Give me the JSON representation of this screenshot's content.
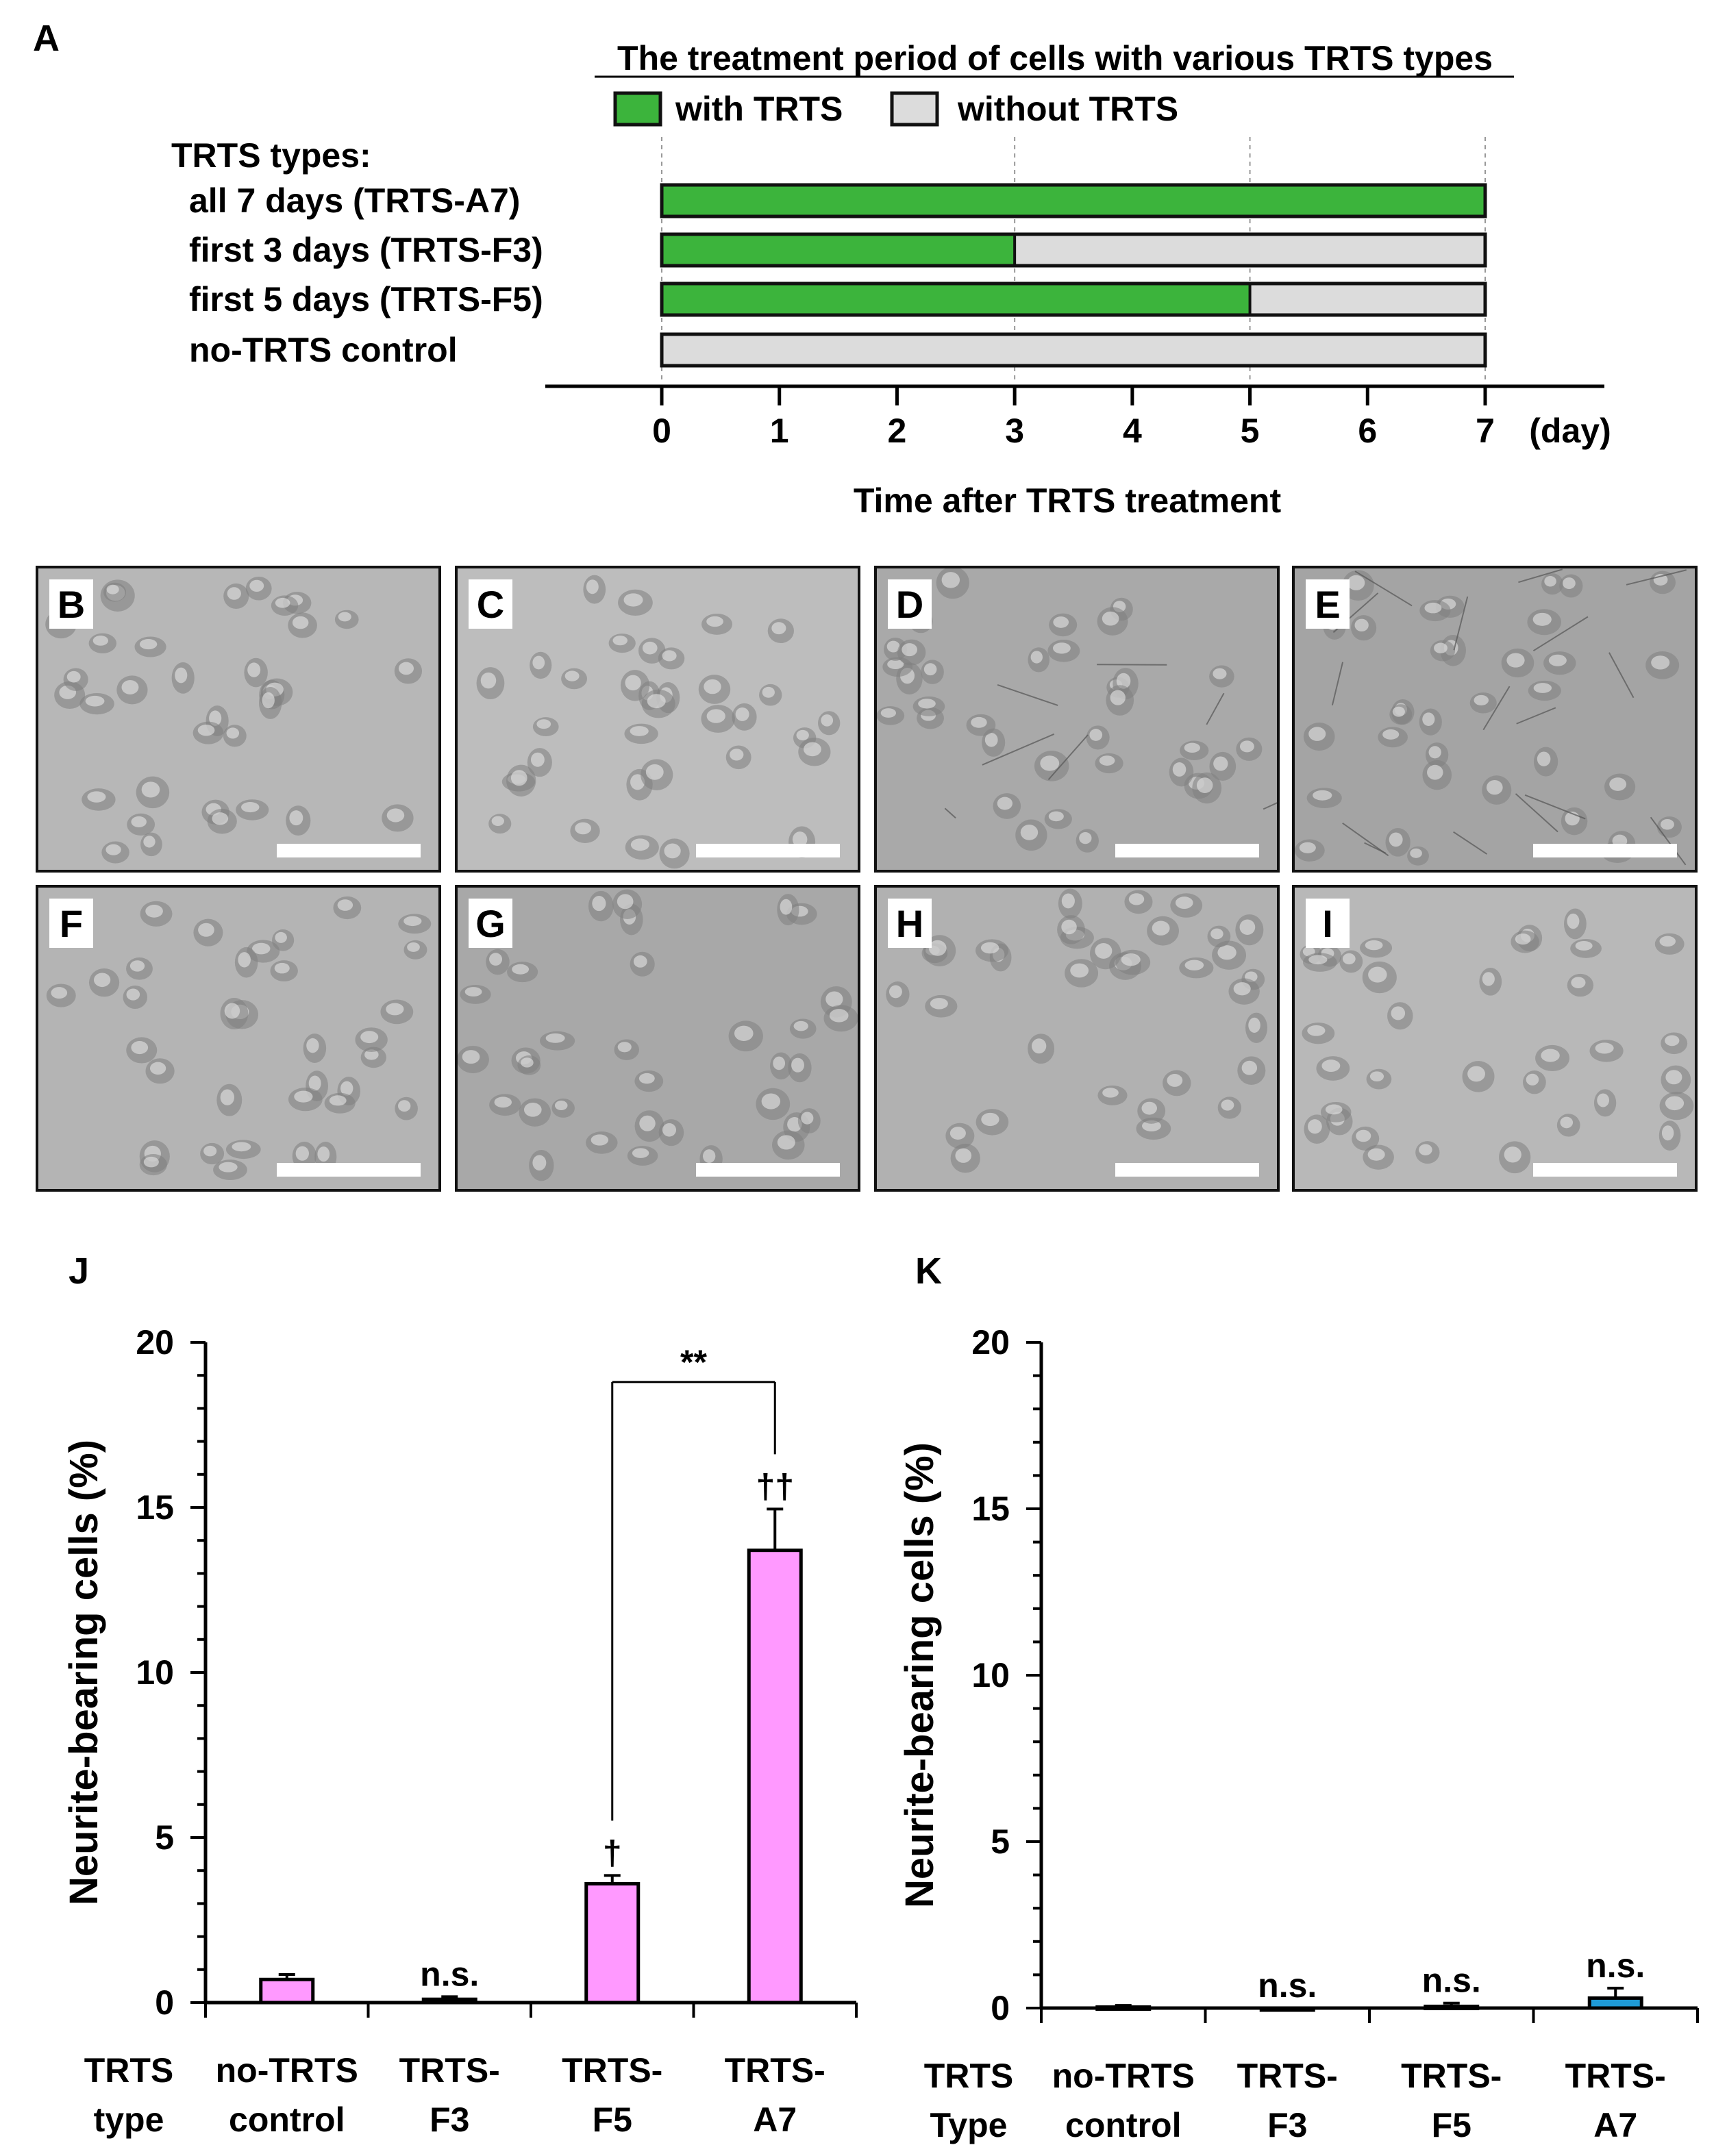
{
  "panel_letters": {
    "A": "A",
    "J": "J",
    "K": "K"
  },
  "timeline": {
    "title": "The treatment period of cells with various TRTS types",
    "legend_with": "with TRTS",
    "legend_without": "without TRTS",
    "types_heading": "TRTS types:",
    "rows": [
      {
        "label": "all 7 days (TRTS-A7)",
        "with_days": 7
      },
      {
        "label": "first 3 days (TRTS-F3)",
        "with_days": 3
      },
      {
        "label": "first 5 days (TRTS-F5)",
        "with_days": 5
      },
      {
        "label": "no-TRTS control",
        "with_days": 0
      }
    ],
    "total_days": 7,
    "ticks": [
      "0",
      "1",
      "2",
      "3",
      "4",
      "5",
      "6",
      "7"
    ],
    "unit": "(day)",
    "xlabel": "Time after TRTS treatment",
    "colors": {
      "with": "#3cb43c",
      "without": "#dcdcdc"
    }
  },
  "micrographs": [
    {
      "label": "B",
      "tone": "#b7b7b7"
    },
    {
      "label": "C",
      "tone": "#bdbdbd"
    },
    {
      "label": "D",
      "tone": "#a9a9a9"
    },
    {
      "label": "E",
      "tone": "#a4a4a4"
    },
    {
      "label": "F",
      "tone": "#b4b4b4"
    },
    {
      "label": "G",
      "tone": "#a8a8a8"
    },
    {
      "label": "H",
      "tone": "#b1b1b1"
    },
    {
      "label": "I",
      "tone": "#b8b8b8"
    }
  ],
  "chart_data": [
    {
      "type": "bar",
      "panel": "J",
      "categories": [
        "no-TRTS control",
        "TRTS-F3",
        "TRTS-F5",
        "TRTS-A7"
      ],
      "category_lines": [
        [
          "no-TRTS",
          "control"
        ],
        [
          "TRTS-",
          "F3"
        ],
        [
          "TRTS-",
          "F5"
        ],
        [
          "TRTS-",
          "A7"
        ]
      ],
      "values": [
        0.7,
        0.1,
        3.6,
        13.7
      ],
      "errors": [
        0.15,
        0.08,
        0.25,
        1.25
      ],
      "annotations": [
        "",
        "n.s.",
        "†",
        "††"
      ],
      "bracket": {
        "from": 2,
        "to": 3,
        "label": "**"
      },
      "ylabel": "Neurite-bearing cells (%)",
      "ylim": [
        0,
        20
      ],
      "yticks": [
        "0",
        "5",
        "10",
        "15",
        "20"
      ],
      "xtype_label": [
        "TRTS",
        "type"
      ],
      "color": "#ff99ff"
    },
    {
      "type": "bar",
      "panel": "K",
      "categories": [
        "no-TRTS control",
        "TRTS-F3",
        "TRTS-F5",
        "TRTS-A7"
      ],
      "category_lines": [
        [
          "no-TRTS",
          "control"
        ],
        [
          "TRTS-",
          "F3"
        ],
        [
          "TRTS-",
          "F5"
        ],
        [
          "TRTS-",
          "A7"
        ]
      ],
      "values": [
        0.03,
        0.0,
        0.05,
        0.3
      ],
      "errors": [
        0.05,
        0.0,
        0.1,
        0.3
      ],
      "annotations": [
        "",
        "n.s.",
        "n.s.",
        "n.s."
      ],
      "ylabel": "Neurite-bearing cells (%)",
      "ylim": [
        0,
        20
      ],
      "yticks": [
        "0",
        "5",
        "10",
        "15",
        "20"
      ],
      "xtype_label": [
        "TRTS",
        "Type"
      ],
      "color": "#1f9bd7"
    }
  ]
}
